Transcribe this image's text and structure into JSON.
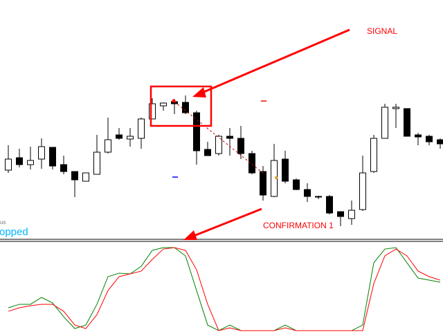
{
  "chart_data": [
    {
      "type": "candlestick",
      "open": [
        99,
        117,
        107,
        115,
        132,
        107,
        97,
        83,
        93,
        125,
        150,
        144,
        145,
        173,
        192,
        198,
        197,
        182,
        129,
        123,
        148,
        145,
        123,
        97,
        61,
        115,
        85,
        71,
        61,
        61,
        39,
        29,
        42,
        97,
        145,
        188,
        188,
        150,
        148,
        143
      ],
      "high": [
        135,
        130,
        133,
        145,
        132,
        120,
        97,
        95,
        150,
        175,
        160,
        160,
        175,
        203,
        197,
        202,
        207,
        185,
        140,
        150,
        160,
        163,
        127,
        105,
        137,
        127,
        87,
        80,
        62,
        63,
        39,
        55,
        120,
        150,
        195,
        195,
        188,
        153,
        150,
        145
      ],
      "low": [
        95,
        103,
        100,
        101,
        100,
        93,
        60,
        83,
        93,
        123,
        143,
        133,
        130,
        173,
        185,
        180,
        180,
        107,
        120,
        120,
        120,
        115,
        93,
        55,
        60,
        80,
        70,
        53,
        57,
        35,
        18,
        20,
        40,
        95,
        145,
        160,
        148,
        135,
        135,
        130
      ],
      "close": [
        115,
        107,
        113,
        133,
        105,
        97,
        85,
        95,
        125,
        143,
        145,
        148,
        173,
        195,
        196,
        195,
        182,
        127,
        120,
        148,
        145,
        123,
        95,
        63,
        113,
        83,
        71,
        61,
        60,
        37,
        32,
        41,
        95,
        145,
        190,
        190,
        148,
        147,
        140,
        137
      ],
      "up_color": "#ffffff",
      "down_color": "#000000",
      "outline_color": "#000000",
      "ylim": [
        0,
        345
      ],
      "annotations": [
        "SIGNAL",
        "CONFIRMATION 1"
      ],
      "status": [
        "us",
        "opped"
      ]
    },
    {
      "type": "line",
      "series": [
        {
          "color": "#008000",
          "values": [
            27.5,
            31.7,
            31.7,
            40,
            33.3,
            16.7,
            2.5,
            6.7,
            31.7,
            65,
            69.2,
            68.3,
            77.5,
            96.7,
            100,
            100,
            90,
            48.3,
            6.7,
            0,
            6.7,
            0,
            0,
            0,
            0,
            6.7,
            0,
            0,
            0,
            0,
            0,
            0,
            6.7,
            81.7,
            98.3,
            100,
            81.7,
            63.3,
            60.8,
            58.3
          ]
        },
        {
          "color": "#ff0000",
          "values": [
            23.3,
            27.5,
            30,
            31.7,
            31.7,
            23.3,
            6.7,
            2.5,
            19.2,
            48.3,
            65,
            68.3,
            71.7,
            85.8,
            98.3,
            100,
            96.7,
            73.3,
            31.7,
            0,
            3.3,
            0,
            0,
            0,
            0,
            3.3,
            0,
            0,
            0,
            0,
            0,
            0,
            0,
            56.7,
            90,
            98.3,
            90,
            71.7,
            65,
            60.8
          ]
        }
      ],
      "ylim": [
        0,
        100
      ]
    }
  ]
}
